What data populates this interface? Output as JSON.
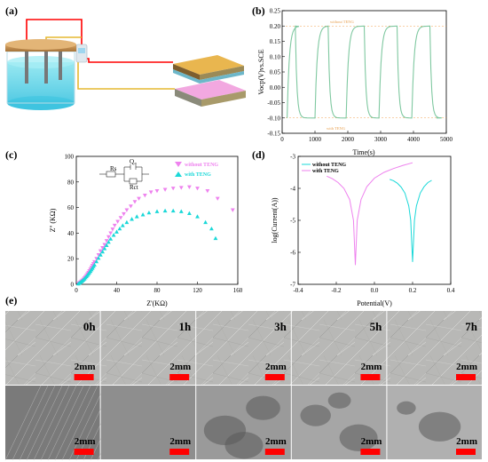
{
  "panels": {
    "a": {
      "label": "(a)"
    },
    "b": {
      "label": "(b)"
    },
    "c": {
      "label": "(c)"
    },
    "d": {
      "label": "(d)"
    },
    "e": {
      "label": "(e)"
    }
  },
  "colors": {
    "pink": "#ee82ee",
    "cyan": "#1ad8d8",
    "ocp_line": "#7fc8a0",
    "ref_line": "#f0a050"
  },
  "chart_data": [
    {
      "id": "b",
      "type": "line",
      "xlabel": "Time(s)",
      "ylabel": "Vocp(V)vs.SCE",
      "xlim": [
        0,
        5000
      ],
      "ylim": [
        -0.15,
        0.25
      ],
      "xticks": [
        "0",
        "1000",
        "2000",
        "3000",
        "4000",
        "5000"
      ],
      "yticks": [
        "0.25",
        "0.20",
        "0.15",
        "0.10",
        "0.05",
        "0.00",
        "-0.05",
        "-0.10",
        "-0.15"
      ],
      "reference_lines": [
        0.2,
        -0.1
      ],
      "annotations": {
        "top": "without TENG",
        "bottom": "with TENG"
      },
      "cycles": [
        {
          "on": 0,
          "off": 400
        },
        {
          "on": 1000,
          "off": 1400
        },
        {
          "on": 1950,
          "off": 2500
        },
        {
          "on": 2950,
          "off": 3500
        },
        {
          "on": 3950,
          "off": 4500
        }
      ],
      "high_level": 0.2,
      "low_level": -0.1
    },
    {
      "id": "c",
      "type": "scatter",
      "xlabel": "Z'(KΩ)",
      "ylabel": "Z'' (KΩ)",
      "xlim": [
        0,
        160
      ],
      "ylim": [
        0,
        100
      ],
      "xticks": [
        "0",
        "40",
        "80",
        "120",
        "160"
      ],
      "yticks": [
        "0",
        "20",
        "40",
        "60",
        "80",
        "100"
      ],
      "circuit": {
        "rs": "Rs",
        "q": "Q",
        "q_sub": "dl",
        "rct": "Rct"
      },
      "series": [
        {
          "name": "without TENG",
          "color": "#ee82ee",
          "marker": "triangle-down",
          "points": [
            [
              2,
              0.5
            ],
            [
              3,
              1
            ],
            [
              4,
              1.6
            ],
            [
              5,
              2.3
            ],
            [
              6,
              3
            ],
            [
              7,
              3.8
            ],
            [
              8,
              4.7
            ],
            [
              9,
              5.7
            ],
            [
              10,
              6.8
            ],
            [
              11,
              8
            ],
            [
              12,
              9.2
            ],
            [
              13,
              10.5
            ],
            [
              14,
              11.8
            ],
            [
              15,
              13.2
            ],
            [
              16,
              14.6
            ],
            [
              17,
              16
            ],
            [
              18,
              17.5
            ],
            [
              20,
              20
            ],
            [
              22,
              23
            ],
            [
              24,
              26
            ],
            [
              26,
              28.5
            ],
            [
              28,
              31
            ],
            [
              30,
              34
            ],
            [
              32,
              37
            ],
            [
              34,
              40
            ],
            [
              36,
              43
            ],
            [
              38,
              46
            ],
            [
              41,
              49
            ],
            [
              44,
              52
            ],
            [
              47,
              55
            ],
            [
              50,
              58
            ],
            [
              54,
              61
            ],
            [
              58,
              64.5
            ],
            [
              62,
              67
            ],
            [
              68,
              69.5
            ],
            [
              74,
              72
            ],
            [
              80,
              73
            ],
            [
              88,
              74
            ],
            [
              96,
              75
            ],
            [
              104,
              75.5
            ],
            [
              112,
              76
            ],
            [
              120,
              75
            ],
            [
              130,
              73
            ],
            [
              140,
              67
            ],
            [
              155,
              58
            ]
          ]
        },
        {
          "name": "with TENG",
          "color": "#1ad8d8",
          "marker": "triangle-up",
          "points": [
            [
              2,
              0.5
            ],
            [
              3,
              1
            ],
            [
              4,
              1.5
            ],
            [
              5,
              2.1
            ],
            [
              6,
              2.8
            ],
            [
              7,
              3.5
            ],
            [
              8,
              4.3
            ],
            [
              9,
              5.2
            ],
            [
              10,
              6.1
            ],
            [
              11,
              7.1
            ],
            [
              12,
              8.1
            ],
            [
              13,
              9.2
            ],
            [
              14,
              10.3
            ],
            [
              15,
              11.5
            ],
            [
              16,
              12.7
            ],
            [
              17,
              14
            ],
            [
              18,
              15.2
            ],
            [
              20,
              17.8
            ],
            [
              22,
              20.5
            ],
            [
              24,
              23
            ],
            [
              26,
              25.5
            ],
            [
              28,
              28
            ],
            [
              30,
              30.5
            ],
            [
              32,
              33
            ],
            [
              34,
              35.5
            ],
            [
              37,
              38.5
            ],
            [
              40,
              41
            ],
            [
              43,
              43.5
            ],
            [
              46,
              46
            ],
            [
              50,
              48.5
            ],
            [
              55,
              51
            ],
            [
              60,
              53
            ],
            [
              66,
              54.5
            ],
            [
              72,
              56
            ],
            [
              80,
              57
            ],
            [
              88,
              57.5
            ],
            [
              96,
              57.5
            ],
            [
              104,
              57
            ],
            [
              112,
              55.5
            ],
            [
              120,
              53
            ],
            [
              128,
              48.5
            ],
            [
              134,
              43.5
            ],
            [
              138,
              36
            ]
          ]
        }
      ]
    },
    {
      "id": "d",
      "type": "line",
      "xlabel": "Potential(V)",
      "ylabel": "log(Current(A))",
      "xlim": [
        -0.4,
        0.4
      ],
      "ylim": [
        -7,
        -3
      ],
      "xticks": [
        "-0.4",
        "-0.2",
        "0.0",
        "0.2",
        "0.4"
      ],
      "yticks": [
        "-3",
        "-4",
        "-5",
        "-6",
        "-7"
      ],
      "series": [
        {
          "name": "without TENG",
          "color": "#1ad8d8",
          "ecorr": 0.2,
          "points": [
            [
              0.08,
              -3.72
            ],
            [
              0.1,
              -3.76
            ],
            [
              0.12,
              -3.84
            ],
            [
              0.14,
              -3.96
            ],
            [
              0.16,
              -4.15
            ],
            [
              0.18,
              -4.55
            ],
            [
              0.19,
              -5.0
            ],
            [
              0.2,
              -6.3
            ],
            [
              0.21,
              -5.0
            ],
            [
              0.22,
              -4.55
            ],
            [
              0.24,
              -4.15
            ],
            [
              0.26,
              -3.95
            ],
            [
              0.28,
              -3.82
            ],
            [
              0.3,
              -3.75
            ]
          ]
        },
        {
          "name": "with TENG",
          "color": "#ee82ee",
          "ecorr": -0.1,
          "points": [
            [
              -0.25,
              -3.62
            ],
            [
              -0.22,
              -3.7
            ],
            [
              -0.19,
              -3.82
            ],
            [
              -0.16,
              -4.0
            ],
            [
              -0.13,
              -4.35
            ],
            [
              -0.11,
              -5.0
            ],
            [
              -0.1,
              -6.4
            ],
            [
              -0.09,
              -5.0
            ],
            [
              -0.07,
              -4.35
            ],
            [
              -0.04,
              -3.95
            ],
            [
              0.0,
              -3.68
            ],
            [
              0.05,
              -3.5
            ],
            [
              0.1,
              -3.38
            ],
            [
              0.15,
              -3.28
            ],
            [
              0.2,
              -3.2
            ]
          ]
        }
      ]
    }
  ],
  "photos": {
    "time_labels": [
      "0h",
      "1h",
      "3h",
      "5h",
      "7h"
    ],
    "scale_label": "2mm",
    "scale_bar_color": "#ff0000"
  }
}
